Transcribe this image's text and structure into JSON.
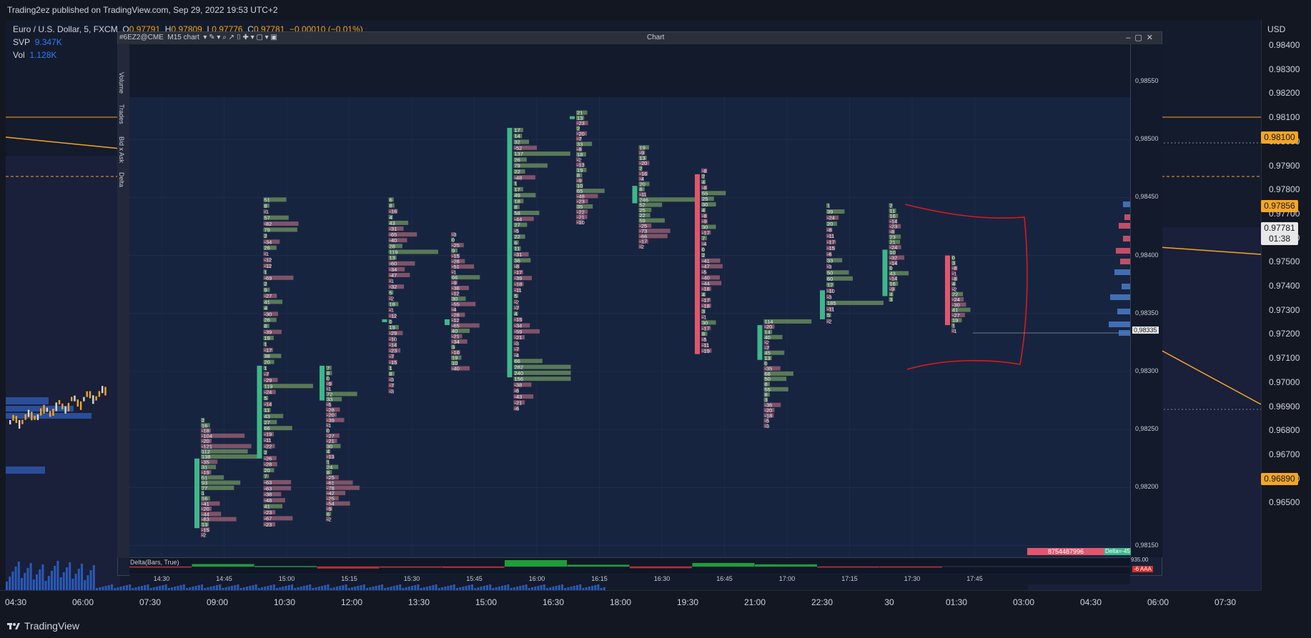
{
  "header": {
    "published": "Trading2ez published on TradingView.com, Sep 29, 2022 19:53 UTC+2"
  },
  "legend": {
    "symbol": "Euro / U.S. Dollar, 5, FXCM",
    "o_label": "O",
    "o": "0.97791",
    "h_label": "H",
    "h": "0.97809",
    "l_label": "L",
    "l": "0.97776",
    "c_label": "C",
    "c": "0.97781",
    "change": "−0.00010 (−0.01%)",
    "svp_label": "SVP",
    "svp": "9.347K",
    "vol_label": "Vol",
    "vol": "1.128K"
  },
  "price_axis": {
    "currency": "USD",
    "ticks": [
      "0.98400",
      "0.98300",
      "0.98200",
      "0.98100",
      "0.98000",
      "0.97900",
      "0.97800",
      "0.97700",
      "0.97600",
      "0.97500",
      "0.97400",
      "0.97300",
      "0.97200",
      "0.97100",
      "0.97000",
      "0.96900",
      "0.96800",
      "0.96700",
      "0.96600",
      "0.96500"
    ],
    "badges": {
      "orange_top": "0.98100",
      "orange_mid": "0.97856",
      "current": "0.97781",
      "countdown": "01:38",
      "orange_low": "0.96890"
    }
  },
  "time_axis": {
    "ticks": [
      "04:30",
      "06:00",
      "07:30",
      "09:00",
      "10:30",
      "12:00",
      "13:30",
      "15:00",
      "16:30",
      "18:00",
      "19:30",
      "21:00",
      "22:30",
      "30",
      "01:30",
      "03:00",
      "04:30",
      "06:00",
      "07:30"
    ]
  },
  "footer": {
    "brand": "TradingView"
  },
  "window": {
    "title": "Chart",
    "symbol": "#6EZ2@CME",
    "timeframe": "M15 chart",
    "side_tabs": [
      "Volume",
      "Trades",
      "Bid x Ask",
      "Delta"
    ],
    "inner_price_ticks": [
      "0,98550",
      "0,98500",
      "0,98450",
      "0,98400",
      "0,98350",
      "0,98300",
      "0,98250",
      "0,98200",
      "0,98150"
    ],
    "price_marker": "0,98335",
    "inner_time_ticks": [
      "14:30",
      "14:45",
      "15:00",
      "15:15",
      "15:30",
      "15:45",
      "16:00",
      "16:15",
      "16:30",
      "16:45",
      "17:00",
      "17:15",
      "17:30",
      "17:45"
    ],
    "delta_pane_label": "Delta(Bars, True)",
    "delta_level_top": "935.00",
    "delta_level_bottom": "-6 AAA",
    "status_volume": "8754487996",
    "status_delta": "Delta=-45"
  },
  "colors": {
    "up": "#3fb68b",
    "down": "#e0566e",
    "orange": "#f5a623",
    "annotation": "#d81b1b"
  },
  "footprint": [
    {
      "time": "14:30",
      "open": 0.98165,
      "high": 0.9826,
      "low": 0.9816,
      "close": 0.98225,
      "numbers": [
        "2",
        "16",
        "-18",
        "-104",
        "-20",
        "-121",
        "112",
        "138",
        "-35",
        "31",
        "-19",
        "51",
        "93",
        "77",
        "1",
        "16",
        "-41",
        "-20",
        "-44",
        "-83",
        "13",
        "-15",
        "-2"
      ]
    },
    {
      "time": "14:45",
      "open": 0.98225,
      "high": 0.9845,
      "low": 0.98165,
      "close": 0.98305,
      "numbers": [
        "51",
        "8",
        "-1",
        "57",
        "-82",
        "79",
        "2",
        "-34",
        "26",
        "-1",
        "-12",
        "-12",
        "1",
        "-69",
        "2",
        "9",
        "-27",
        "41",
        "4",
        "-30",
        "26",
        "8",
        "-39",
        "19",
        "1",
        "-17",
        "38",
        "20",
        "1",
        "-7",
        "-29",
        "119",
        "-24",
        "5",
        "-14",
        "11",
        "43",
        "27",
        "66",
        "-19",
        "-11",
        "-22",
        "2",
        "-26",
        "-28",
        "20",
        "7",
        "-63",
        "-63",
        "-38",
        "-48",
        "41",
        "-23",
        "-67",
        "-23"
      ]
    },
    {
      "time": "15:00",
      "open": 0.98275,
      "high": 0.98305,
      "low": 0.9829,
      "close": 0.98305,
      "numbers": [
        "7",
        "8",
        "0",
        "-9",
        "-1",
        "72",
        "33",
        "-5",
        "-28",
        "-20",
        "-39",
        "-1",
        "0",
        "-27",
        "-21",
        "30",
        "4",
        "-13",
        "1",
        "24",
        "8",
        "-25",
        "-61",
        "-78",
        "-42",
        "-25",
        "-54",
        "-9",
        "6",
        "-2"
      ]
    },
    {
      "time": "15:15",
      "open": 0.98345,
      "high": 0.9845,
      "low": 0.9828,
      "close": 0.98345,
      "numbers": [
        "6",
        "8",
        "-16",
        "4",
        "43",
        "-31",
        "-65",
        "-40",
        "28",
        "119",
        "13",
        "-60",
        "-34",
        "-47",
        "-1",
        "-32",
        "5",
        "-2",
        "18",
        "-1",
        "-12",
        "0",
        "19",
        "-29",
        "-10",
        "-14",
        "-23",
        "-7",
        "-15",
        "1",
        "8",
        "-3",
        "-7",
        "-3"
      ]
    },
    {
      "time": "15:30",
      "open": 0.9834,
      "high": 0.9842,
      "low": 0.983,
      "close": 0.98345,
      "numbers": [
        "-3",
        "0",
        "-25",
        "9",
        "-15",
        "-28",
        "-51",
        "-1",
        "66",
        "-9",
        "-38",
        "-12",
        "30",
        "-55",
        "-4",
        "-28",
        "-12",
        "-65",
        "40",
        "-21",
        "-34",
        "3",
        "-16",
        "19",
        "10",
        "-40"
      ]
    },
    {
      "time": "15:45",
      "open": 0.98295,
      "high": 0.9851,
      "low": 0.98265,
      "close": 0.9851,
      "numbers": [
        "17",
        "14",
        "32",
        "-52",
        "137",
        "26",
        "79",
        "22",
        "-48",
        "1",
        "17",
        "49",
        "18",
        "8",
        "58",
        "-44",
        "27",
        "-5",
        "22",
        "6",
        "11",
        "-31",
        "36",
        "-8",
        "-17",
        "-39",
        "-18",
        "-11",
        "5",
        "-2",
        "-7",
        "4",
        "-15",
        "-34",
        "-59",
        "-21",
        "-3",
        "-7",
        "-4",
        "66",
        "282",
        "240",
        "156",
        "-38",
        "-6",
        "-43",
        "-21",
        "-6"
      ]
    },
    {
      "time": "16:00",
      "open": 0.9852,
      "high": 0.98525,
      "low": 0.9844,
      "close": 0.9852,
      "numbers": [
        "21",
        "13",
        "-23",
        "2",
        "-20",
        "-7",
        "33",
        "-8",
        "18",
        "-2",
        "-13",
        "19",
        "8",
        "-9",
        "10",
        "65",
        "-48",
        "-23",
        "35",
        "-22",
        "-21",
        "-10"
      ]
    },
    {
      "time": "16:15",
      "open": 0.98445,
      "high": 0.98495,
      "low": 0.9841,
      "close": 0.9846,
      "numbers": [
        "19",
        "-9",
        "13",
        "-20",
        "2",
        "-16",
        "-4",
        "20",
        "8",
        "-11",
        "246",
        "52",
        "25",
        "22",
        "59",
        "-25",
        "-73",
        "-66",
        "-17",
        "-2"
      ]
    },
    {
      "time": "16:30",
      "open": 0.9847,
      "high": 0.98475,
      "low": 0.98315,
      "close": 0.98315,
      "numbers": [
        "-8",
        "2",
        "4",
        "-8",
        "55",
        "25",
        "30",
        "4",
        "-8",
        "-9",
        "30",
        "-17",
        "7",
        "-4",
        "0",
        "2",
        "-41",
        "-47",
        "-5",
        "-40",
        "-44",
        "-18",
        "4",
        "-17",
        "-18",
        "3",
        "-1",
        "30",
        "-17",
        "8",
        "-5",
        "-11",
        "-19"
      ]
    },
    {
      "time": "16:45",
      "open": 0.9831,
      "high": 0.98345,
      "low": 0.9831,
      "close": 0.9834,
      "numbers": [
        "114",
        "-20",
        "14",
        "40",
        "-2",
        "-7",
        "45",
        "13",
        "0",
        "-35",
        "68",
        "50",
        "8",
        "55",
        "8",
        "3",
        "-36",
        "-20",
        "-18",
        "-5",
        "-3"
      ]
    },
    {
      "time": "17:00",
      "open": 0.98345,
      "high": 0.98445,
      "low": 0.9834,
      "close": 0.9837,
      "numbers": [
        "1",
        "39",
        "-24",
        "20",
        "-8",
        "-11",
        "-17",
        "-15",
        "-6",
        "33",
        "-3",
        "50",
        "60",
        "12",
        "-10",
        "-3",
        "185",
        "-11",
        "5",
        "-2"
      ]
    },
    {
      "time": "17:15",
      "open": 0.98365,
      "high": 0.98445,
      "low": 0.9836,
      "close": 0.98405,
      "numbers": [
        "2",
        "11",
        "16",
        "-14",
        "-23",
        "-8",
        "23",
        "21",
        "-24",
        "10",
        "-32",
        "-14",
        "0",
        "43",
        "-14",
        "16",
        "-9",
        "4",
        "3"
      ]
    },
    {
      "time": "17:30",
      "open": 0.984,
      "high": 0.984,
      "low": 0.9834,
      "close": 0.9834,
      "numbers": [
        "0",
        "3",
        "-8",
        "-1",
        "-8",
        "4",
        "-2",
        "22",
        "-24",
        "-30",
        "41",
        "-27",
        "19",
        "1",
        "-1"
      ]
    }
  ],
  "delta_bars": [
    {
      "time": "14:30",
      "value": -38
    },
    {
      "time": "14:45",
      "value": 212
    },
    {
      "time": "15:00",
      "value": 42
    },
    {
      "time": "15:15",
      "value": -168
    },
    {
      "time": "15:30",
      "value": -94
    },
    {
      "time": "15:45",
      "value": -111
    },
    {
      "time": "16:00",
      "value": 563
    },
    {
      "time": "16:15",
      "value": 154
    },
    {
      "time": "16:30",
      "value": -140
    },
    {
      "time": "16:45",
      "value": 301
    },
    {
      "time": "17:00",
      "value": 186
    },
    {
      "time": "17:15",
      "value": -61
    },
    {
      "time": "17:30",
      "value": -45
    }
  ]
}
